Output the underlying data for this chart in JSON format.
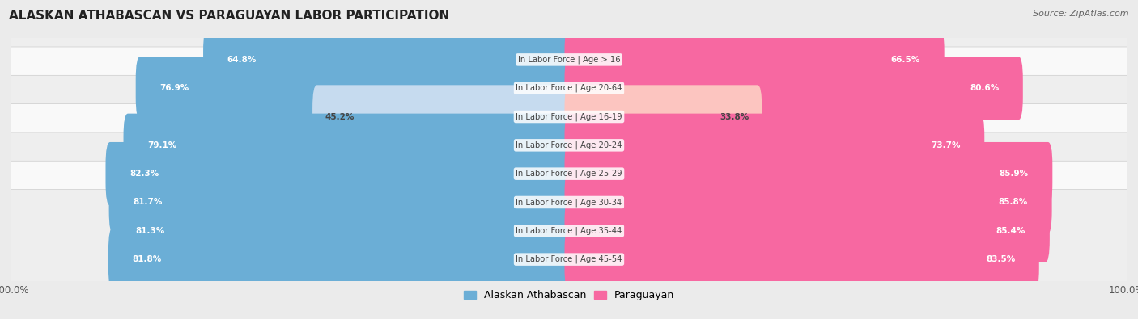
{
  "title": "ALASKAN ATHABASCAN VS PARAGUAYAN LABOR PARTICIPATION",
  "source": "Source: ZipAtlas.com",
  "categories": [
    "In Labor Force | Age > 16",
    "In Labor Force | Age 20-64",
    "In Labor Force | Age 16-19",
    "In Labor Force | Age 20-24",
    "In Labor Force | Age 25-29",
    "In Labor Force | Age 30-34",
    "In Labor Force | Age 35-44",
    "In Labor Force | Age 45-54"
  ],
  "alaskan_values": [
    64.8,
    76.9,
    45.2,
    79.1,
    82.3,
    81.7,
    81.3,
    81.8
  ],
  "paraguayan_values": [
    66.5,
    80.6,
    33.8,
    73.7,
    85.9,
    85.8,
    85.4,
    83.5
  ],
  "alaskan_color": "#6baed6",
  "alaskan_light_color": "#c6dbef",
  "paraguayan_color": "#f768a1",
  "paraguayan_light_color": "#fcc5c0",
  "bg_color": "#ebebeb",
  "row_bg_even": "#f9f9f9",
  "row_bg_odd": "#eeeeee",
  "bar_height": 0.62,
  "max_value": 100.0,
  "legend_alaskan": "Alaskan Athabascan",
  "legend_paraguayan": "Paraguayan",
  "light_threshold": 50
}
